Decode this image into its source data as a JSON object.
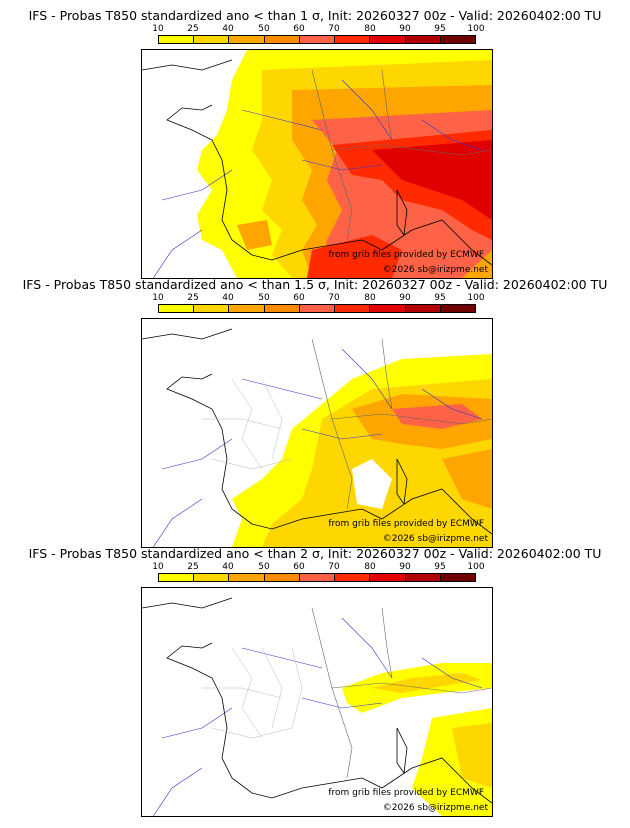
{
  "scale": {
    "ticks": [
      "10",
      "25",
      "40",
      "50",
      "60",
      "70",
      "80",
      "90",
      "95",
      "100"
    ],
    "colors": [
      "#ffff00",
      "#ffd700",
      "#ffa500",
      "#ff8c00",
      "#ff6347",
      "#ff2a00",
      "#e00000",
      "#b00000",
      "#700000"
    ]
  },
  "credits": {
    "source": "from grib files provided by ECMWF",
    "copyright": "©2026 sb@irizpme.net"
  },
  "panels": [
    {
      "title": "IFS - Probas T850  standardized ano < than 1 σ, Init: 20260327 00z - Valid: 20260402:00 TU",
      "threshold_sigma": 1
    },
    {
      "title": "IFS - Probas T850  standardized ano < than 1.5 σ, Init: 20260327 00z - Valid: 20260402:00 TU",
      "threshold_sigma": 1.5
    },
    {
      "title": "IFS - Probas T850  standardized ano < than 2 σ, Init: 20260327 00z - Valid: 20260402:00 TU",
      "threshold_sigma": 2
    }
  ]
}
